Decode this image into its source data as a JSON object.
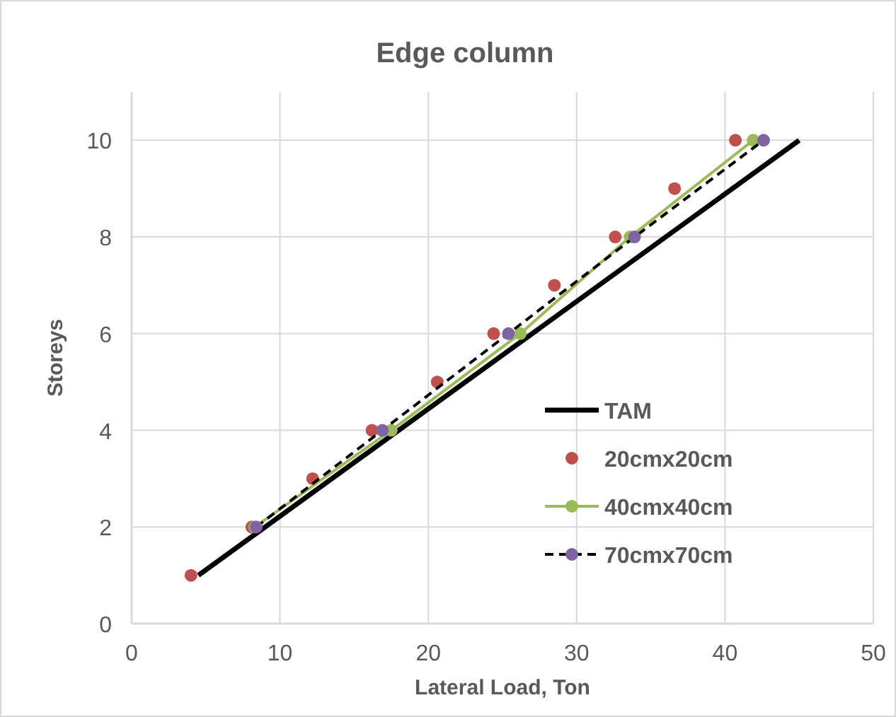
{
  "chart_data": {
    "type": "line",
    "title": "Edge column",
    "xlabel": "Lateral Load, Ton",
    "ylabel": "Storeys",
    "xlim": [
      0,
      50
    ],
    "xticks": [
      0,
      10,
      20,
      30,
      40,
      50
    ],
    "ylim": [
      0,
      11
    ],
    "yticks": [
      0,
      2,
      4,
      6,
      8,
      10
    ],
    "grid": true,
    "legend": "bottom right",
    "series": [
      {
        "name": "TAM",
        "color": "#000000",
        "marker": "none",
        "line_style": "solid",
        "x": [
          4.5,
          45
        ],
        "values": [
          1,
          10
        ]
      },
      {
        "name": "20cmx20cm",
        "type": "scatter",
        "color": "#c0504d",
        "marker": "circle",
        "x": [
          4.0,
          8.1,
          12.2,
          16.2,
          20.6,
          24.4,
          28.5,
          32.6,
          36.6,
          40.7
        ],
        "values": [
          1,
          2,
          3,
          4,
          5,
          6,
          7,
          8,
          9,
          10
        ]
      },
      {
        "name": "40cmx40cm",
        "color": "#9bbb59",
        "marker": "circle",
        "line_style": "solid",
        "x": [
          8.3,
          17.5,
          26.2,
          33.6,
          41.9
        ],
        "values": [
          2,
          4,
          6,
          8,
          10
        ]
      },
      {
        "color": "#000000",
        "marker": "none",
        "line_style": "dashed",
        "x": [
          8.4,
          16.9,
          25.4,
          33.9,
          42.6
        ],
        "values": [
          2,
          4,
          6,
          8,
          10
        ]
      },
      {
        "name": "70cmx70cm",
        "type": "scatter",
        "color": "#8064a2",
        "marker": "circle",
        "x": [
          8.4,
          16.9,
          25.4,
          33.9,
          42.6
        ],
        "values": [
          2,
          4,
          6,
          8,
          10
        ]
      }
    ]
  }
}
